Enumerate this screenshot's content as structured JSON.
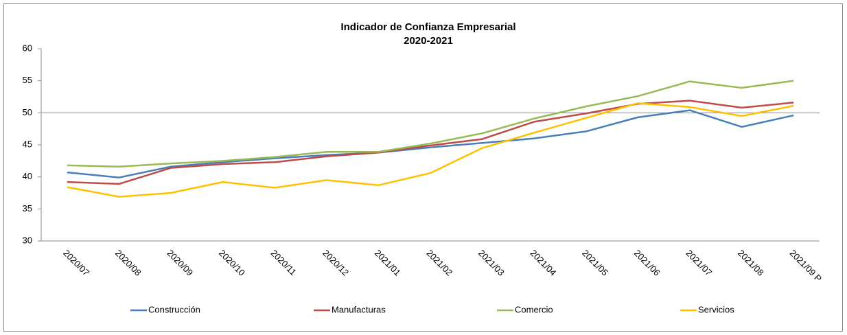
{
  "chart_data": {
    "type": "line",
    "title": "Indicador de Confianza Empresarial",
    "subtitle": "2020-2021",
    "categories": [
      "2020/07",
      "2020/08",
      "2020/09",
      "2020/10",
      "2020/11",
      "2020/12",
      "2021/01",
      "2021/02",
      "2021/03",
      "2021/04",
      "2021/05",
      "2021/06",
      "2021/07",
      "2021/08",
      "2021/09 P"
    ],
    "series": [
      {
        "name": "Construcción",
        "color": "#4a7ebb",
        "values": [
          40.7,
          39.9,
          41.6,
          42.3,
          42.9,
          43.4,
          43.8,
          44.6,
          45.3,
          46.0,
          47.1,
          49.3,
          50.4,
          47.8,
          49.6
        ]
      },
      {
        "name": "Manufacturas",
        "color": "#be4b48",
        "values": [
          39.2,
          38.9,
          41.4,
          42.0,
          42.3,
          43.2,
          43.8,
          44.9,
          45.9,
          48.6,
          49.9,
          51.4,
          51.9,
          50.8,
          51.6
        ]
      },
      {
        "name": "Comercio",
        "color": "#98b954",
        "values": [
          41.8,
          41.6,
          42.1,
          42.5,
          43.1,
          43.9,
          43.9,
          45.2,
          46.8,
          49.1,
          51.0,
          52.6,
          54.9,
          53.9,
          55.0
        ]
      },
      {
        "name": "Servicios",
        "color": "#ffc000",
        "values": [
          38.4,
          36.9,
          37.5,
          39.2,
          38.3,
          39.5,
          38.7,
          40.6,
          44.5,
          46.9,
          49.2,
          51.5,
          50.9,
          49.5,
          51.1
        ]
      }
    ],
    "ylim": [
      30,
      60
    ],
    "yticks": [
      30,
      35,
      40,
      45,
      50,
      55,
      60
    ],
    "reference_line": 50,
    "grid": false,
    "legend": "bottom"
  }
}
